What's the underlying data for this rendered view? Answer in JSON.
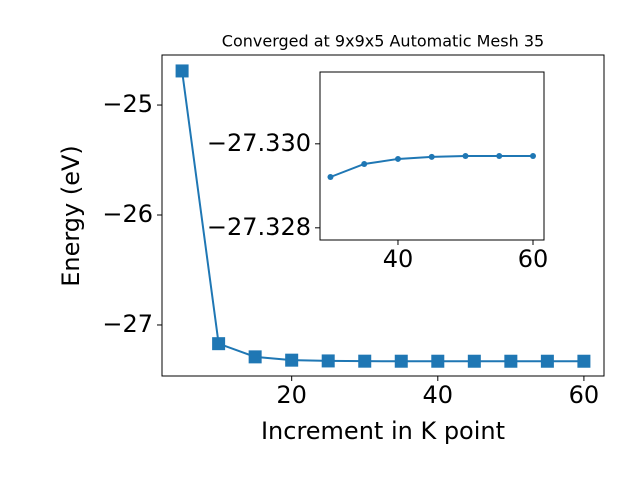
{
  "chart_data": [
    {
      "type": "line",
      "title": "Converged at 9x9x5 Automatic Mesh 35",
      "xlabel": "Increment in K point",
      "ylabel": "Energy (eV)",
      "x": [
        5,
        10,
        15,
        20,
        25,
        30,
        35,
        40,
        45,
        50,
        55,
        60
      ],
      "series": [
        {
          "color": "#1f77b4",
          "marker": "square",
          "values": [
            -24.69,
            -27.17,
            -27.29,
            -27.32,
            -27.327,
            -27.3292,
            -27.3295,
            -27.3296,
            -27.3297,
            -27.3297,
            -27.3297,
            -27.3297
          ]
        }
      ],
      "xlim": [
        2.25,
        62.75
      ],
      "ylim": [
        -27.464,
        -24.545
      ],
      "xticks": [
        20,
        40,
        60
      ],
      "yticks": [
        {
          "value": -27,
          "label": "−27"
        },
        {
          "value": -26,
          "label": "−26"
        },
        {
          "value": -25,
          "label": "−25"
        }
      ]
    },
    {
      "type": "line",
      "x": [
        30,
        35,
        40,
        45,
        50,
        55,
        60
      ],
      "series": [
        {
          "color": "#1f77b4",
          "marker": "circle",
          "values": [
            -27.32921,
            -27.32952,
            -27.32964,
            -27.32969,
            -27.32971,
            -27.32971,
            -27.32971
          ]
        }
      ],
      "xlim": [
        28.45,
        61.63
      ],
      "ylim": [
        -27.32771,
        -27.33171
      ],
      "xticks": [
        40,
        60
      ],
      "yticks": [
        {
          "value": -27.328,
          "label": "−27.328"
        },
        {
          "value": -27.33,
          "label": "−27.330"
        }
      ]
    }
  ]
}
